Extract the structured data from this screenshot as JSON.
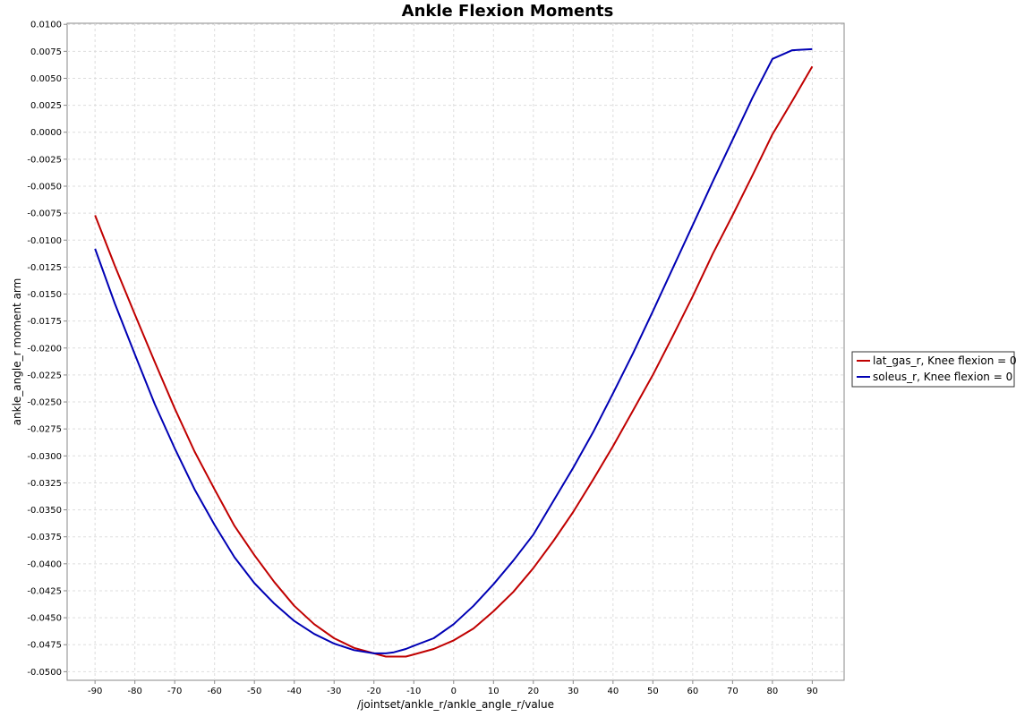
{
  "chart_data": {
    "type": "line",
    "title": "Ankle Flexion Moments",
    "xlabel": "/jointset/ankle_r/ankle_angle_r/value",
    "ylabel": "ankle_angle_r moment arm",
    "xlim": [
      -97,
      98
    ],
    "ylim": [
      -0.0508,
      0.0101
    ],
    "x_ticks": [
      -90,
      -80,
      -70,
      -60,
      -50,
      -40,
      -30,
      -20,
      -10,
      0,
      10,
      20,
      30,
      40,
      50,
      60,
      70,
      80,
      90
    ],
    "x_tick_labels": [
      "-90",
      "-80",
      "-70",
      "-60",
      "-50",
      "-40",
      "-30",
      "-20",
      "-10",
      "0",
      "10",
      "20",
      "30",
      "40",
      "50",
      "60",
      "70",
      "80",
      "90"
    ],
    "y_ticks": [
      0.01,
      0.0075,
      0.005,
      0.0025,
      0,
      -0.0025,
      -0.005,
      -0.0075,
      -0.01,
      -0.0125,
      -0.015,
      -0.0175,
      -0.02,
      -0.0225,
      -0.025,
      -0.0275,
      -0.03,
      -0.0325,
      -0.035,
      -0.0375,
      -0.04,
      -0.0425,
      -0.045,
      -0.0475,
      -0.05
    ],
    "y_tick_labels": [
      "0.0100",
      "0.0075",
      "0.0050",
      "0.0025",
      "0.0000",
      "-0.0025",
      "-0.0050",
      "-0.0075",
      "-0.0100",
      "-0.0125",
      "-0.0150",
      "-0.0175",
      "-0.0200",
      "-0.0225",
      "-0.0250",
      "-0.0275",
      "-0.0300",
      "-0.0325",
      "-0.0350",
      "-0.0375",
      "-0.0400",
      "-0.0425",
      "-0.0450",
      "-0.0475",
      "-0.0500"
    ],
    "grid": true,
    "legend_position": "right",
    "series": [
      {
        "name": "lat_gas_r, Knee flexion = 0",
        "color": "#c00000",
        "x": [
          -90,
          -85,
          -80,
          -75,
          -70,
          -65,
          -60,
          -55,
          -50,
          -45,
          -40,
          -35,
          -30,
          -25,
          -20,
          -17,
          -15,
          -12,
          -10,
          -5,
          0,
          5,
          10,
          15,
          20,
          25,
          30,
          35,
          40,
          45,
          50,
          55,
          60,
          65,
          70,
          75,
          80,
          85,
          90
        ],
        "y": [
          -0.0077,
          -0.0124,
          -0.0169,
          -0.0213,
          -0.0256,
          -0.0296,
          -0.0331,
          -0.0365,
          -0.0392,
          -0.0417,
          -0.0439,
          -0.0456,
          -0.0469,
          -0.0478,
          -0.0483,
          -0.0486,
          -0.0486,
          -0.0486,
          -0.0484,
          -0.0479,
          -0.0471,
          -0.046,
          -0.0444,
          -0.0426,
          -0.0404,
          -0.0379,
          -0.0352,
          -0.0322,
          -0.0291,
          -0.0258,
          -0.0225,
          -0.0189,
          -0.0152,
          -0.0113,
          -0.0077,
          -0.004,
          -0.0002,
          0.0029,
          0.0061
        ]
      },
      {
        "name": "soleus_r, Knee flexion = 0",
        "color": "#0000b4",
        "x": [
          -90,
          -85,
          -80,
          -75,
          -70,
          -65,
          -60,
          -55,
          -50,
          -45,
          -40,
          -35,
          -30,
          -25,
          -20,
          -17,
          -15,
          -12,
          -10,
          -5,
          0,
          5,
          10,
          15,
          20,
          25,
          30,
          35,
          40,
          45,
          50,
          55,
          60,
          65,
          70,
          75,
          80,
          85,
          90
        ],
        "y": [
          -0.0108,
          -0.0159,
          -0.0206,
          -0.0252,
          -0.0293,
          -0.0331,
          -0.0364,
          -0.0394,
          -0.0418,
          -0.0437,
          -0.0453,
          -0.0465,
          -0.0474,
          -0.048,
          -0.0483,
          -0.0483,
          -0.0482,
          -0.0479,
          -0.0476,
          -0.0469,
          -0.0456,
          -0.0439,
          -0.0419,
          -0.0397,
          -0.0373,
          -0.0342,
          -0.0311,
          -0.0278,
          -0.0242,
          -0.0205,
          -0.0166,
          -0.0126,
          -0.0086,
          -0.0046,
          -0.0007,
          0.0032,
          0.0068,
          0.0076,
          0.0077
        ]
      }
    ]
  }
}
